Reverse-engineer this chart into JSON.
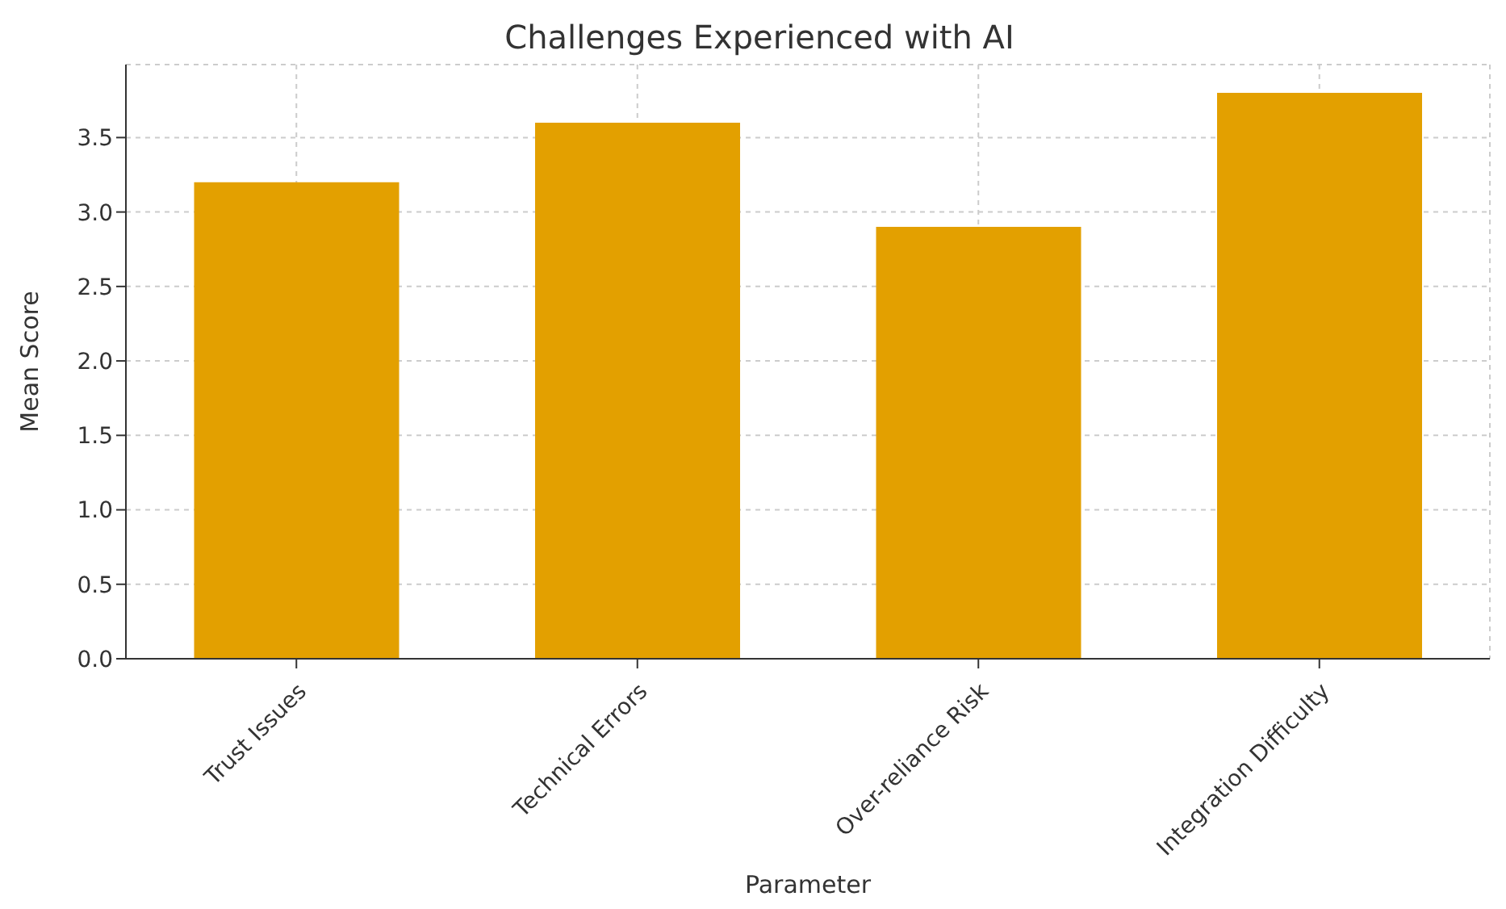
{
  "chart_data": {
    "type": "bar",
    "title": "Challenges Experienced with AI",
    "xlabel": "Parameter",
    "ylabel": "Mean Score",
    "categories": [
      "Trust Issues",
      "Technical Errors",
      "Over-reliance Risk",
      "Integration Difficulty"
    ],
    "values": [
      3.2,
      3.6,
      2.9,
      3.8
    ],
    "color": "#e3a000",
    "ylim": [
      0,
      3.99
    ],
    "yticks": [
      {
        "value": 0,
        "label": "0.0"
      },
      0.5,
      {
        "value": 1,
        "label": "1.0"
      },
      1.5,
      {
        "value": 2,
        "label": "2.0"
      },
      2.5,
      {
        "value": 3,
        "label": "3.0"
      },
      3.5
    ],
    "grid": true
  }
}
